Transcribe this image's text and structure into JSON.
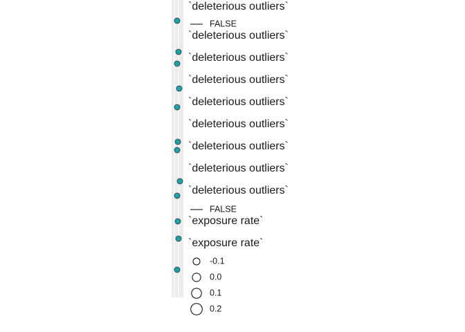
{
  "legend": {
    "line_titles": [
      "`deleterious outliers`",
      "`deleterious outliers`",
      "`deleterious outliers`",
      "`deleterious outliers`",
      "`deleterious outliers`",
      "`deleterious outliers`",
      "`deleterious outliers`",
      "`deleterious outliers`",
      "`deleterious outliers`"
    ],
    "line_keys": [
      "FALSE",
      "FALSE"
    ],
    "size_titles": [
      "`exposure rate`",
      "`exposure rate`"
    ],
    "size_keys": [
      {
        "value": -0.1,
        "label": "-0.1"
      },
      {
        "value": 0.0,
        "label": "0.0"
      },
      {
        "value": 0.1,
        "label": "0.1"
      },
      {
        "value": 0.2,
        "label": "0.2"
      }
    ]
  }
}
